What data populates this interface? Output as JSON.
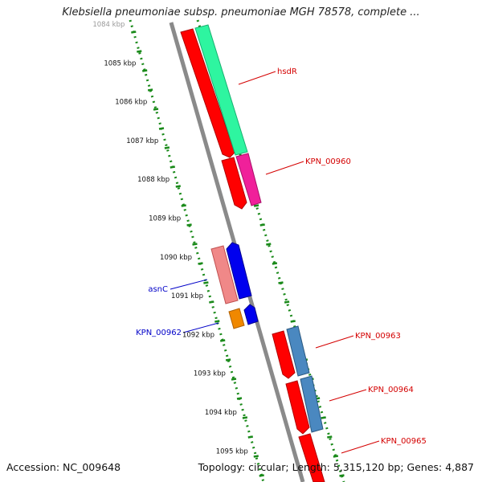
{
  "title": "Klebsiella pneumoniae subsp. pneumoniae MGH 78578, complete ...",
  "footer": {
    "accession": "Accession: NC_009648",
    "summary": "Topology: circular; Length: 5,315,120 bp; Genes: 4,887"
  },
  "scale_ticks": [
    "1084 kbp",
    "1085 kbp",
    "1086 kbp",
    "1087 kbp",
    "1088 kbp",
    "1089 kbp",
    "1090 kbp",
    "1091 kbp",
    "1092 kbp",
    "1093 kbp",
    "1094 kbp",
    "1095 kbp"
  ],
  "colors": {
    "axis": "#808080",
    "track_dots": "#1a8a1a",
    "label_forward": "#d40000",
    "label_reverse": "#0000c8",
    "gene_red": "#ff0000",
    "gene_green": "#2ef5a0",
    "gene_magenta": "#f0209a",
    "gene_blue": "#0000ee",
    "gene_pink": "#f08888",
    "gene_orange": "#f08800",
    "gene_steel": "#4a88c0"
  },
  "gene_labels": {
    "hsdR": "hsdR",
    "kpn00960": "KPN_00960",
    "asnC": "asnC",
    "kpn00962": "KPN_00962",
    "kpn00963": "KPN_00963",
    "kpn00964": "KPN_00964",
    "kpn00965": "KPN_00965"
  }
}
